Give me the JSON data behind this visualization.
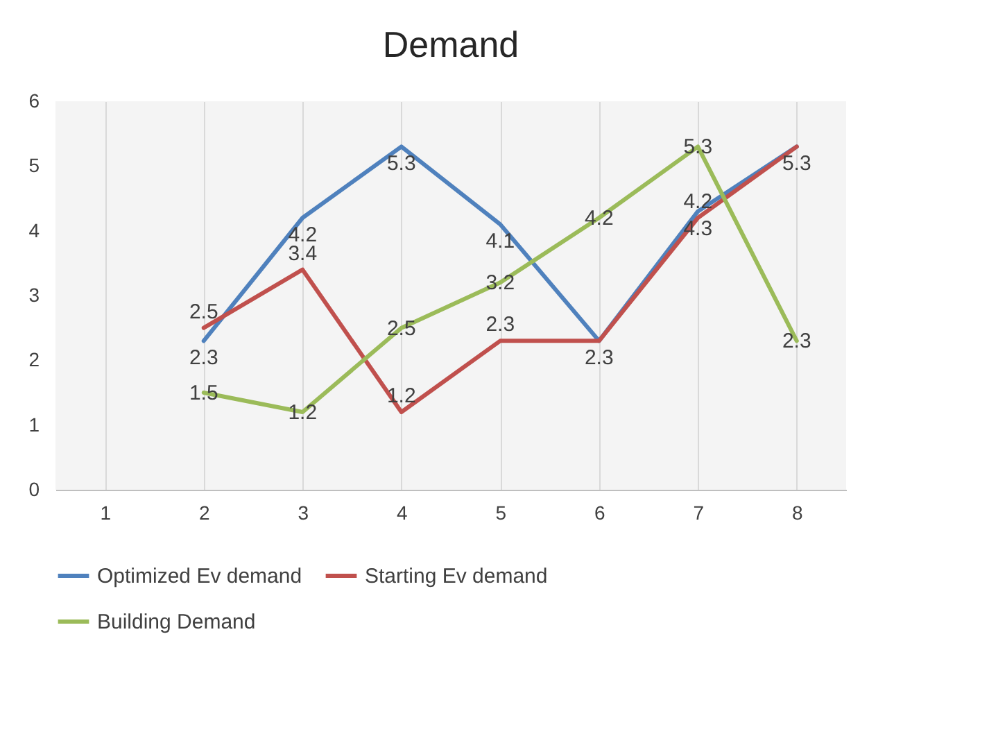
{
  "chart_data": {
    "type": "line",
    "title": "Demand",
    "categories": [
      "1",
      "2",
      "3",
      "4",
      "5",
      "6",
      "7",
      "8"
    ],
    "series": [
      {
        "name": "Optimized Ev demand",
        "color": "#4f81bd",
        "values": [
          null,
          2.3,
          4.2,
          5.3,
          4.1,
          2.3,
          4.3,
          5.3
        ]
      },
      {
        "name": "Starting Ev demand",
        "color": "#c0504d",
        "values": [
          null,
          2.5,
          3.4,
          1.2,
          2.3,
          2.3,
          4.2,
          5.3
        ],
        "value_labels": [
          null,
          "2.5",
          "3.4",
          "1.2",
          "2.3",
          null,
          "4.2",
          null
        ]
      },
      {
        "name": "Building Demand",
        "color": "#9bbb59",
        "values": [
          null,
          1.5,
          1.2,
          2.5,
          3.2,
          4.2,
          5.3,
          2.3
        ]
      }
    ],
    "ylim": [
      0,
      6
    ],
    "yticks": [
      0,
      1,
      2,
      3,
      4,
      5,
      6
    ],
    "grid": "x",
    "legend": "bottom",
    "data_labels": true,
    "marker": "none",
    "line_style": "solid"
  }
}
